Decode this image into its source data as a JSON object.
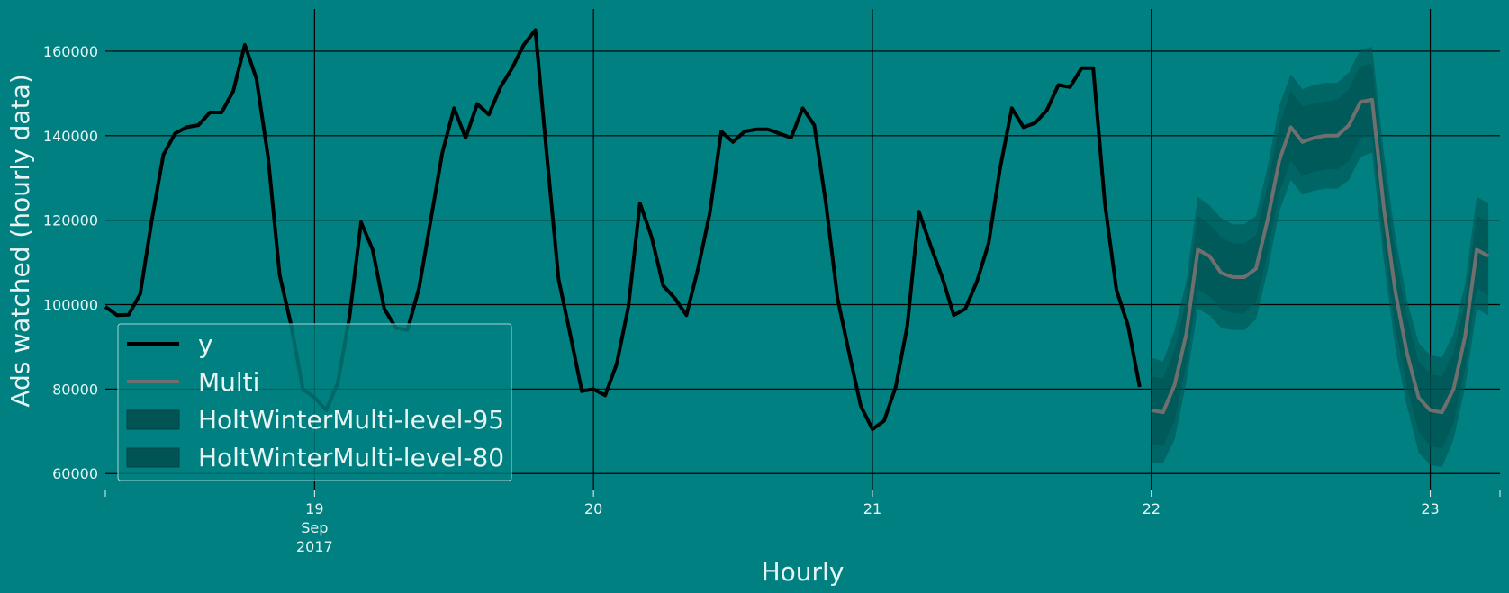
{
  "chart_data": {
    "type": "line",
    "title": "",
    "xlabel": "Hourly",
    "ylabel": "Ads watched (hourly data)",
    "background": "#008080",
    "grid": true,
    "grid_color": "#000000",
    "x_range": [
      "2017-09-18 06:00",
      "2017-09-23 06:00"
    ],
    "ylim": [
      56000,
      170000
    ],
    "y_ticks": [
      60000,
      80000,
      100000,
      120000,
      140000,
      160000
    ],
    "y_tick_labels": [
      "60000",
      "80000",
      "100000",
      "120000",
      "140000",
      "160000"
    ],
    "x_ticks": [
      {
        "x": "2017-09-19",
        "lines": [
          "19",
          "Sep",
          "2017"
        ]
      },
      {
        "x": "2017-09-20",
        "lines": [
          "20"
        ]
      },
      {
        "x": "2017-09-21",
        "lines": [
          "21"
        ]
      },
      {
        "x": "2017-09-22",
        "lines": [
          "22"
        ]
      },
      {
        "x": "2017-09-23",
        "lines": [
          "23"
        ]
      }
    ],
    "legend": {
      "placement": "lower-left",
      "entries": [
        {
          "label": "y",
          "kind": "line",
          "color": "#000000"
        },
        {
          "label": "Multi",
          "kind": "line",
          "color": "#6f6f6f"
        },
        {
          "label": "HoltWinterMulti-level-95",
          "kind": "patch",
          "color": "#005454"
        },
        {
          "label": "HoltWinterMulti-level-80",
          "kind": "patch",
          "color": "#005454"
        }
      ]
    },
    "series": [
      {
        "name": "y",
        "color": "#000000",
        "start": "2017-09-18 06:00",
        "step_hours": 1,
        "values": [
          99500,
          97500,
          97600,
          102500,
          120000,
          135500,
          140500,
          142000,
          142500,
          145500,
          145500,
          150500,
          161500,
          153500,
          135000,
          107000,
          95000,
          80000,
          78000,
          75000,
          81500,
          97000,
          119500,
          113000,
          99000,
          94500,
          94000,
          104000,
          120000,
          136000,
          146500,
          139500,
          147500,
          145000,
          151500,
          156000,
          161500,
          165000,
          135000,
          106000,
          93000,
          79500,
          80000,
          78500,
          86000,
          99500,
          124000,
          116000,
          104500,
          101500,
          97500,
          108500,
          121500,
          141000,
          138500,
          141000,
          141500,
          141500,
          140500,
          139500,
          146500,
          142500,
          124000,
          101500,
          88500,
          76000,
          70500,
          72500,
          80500,
          95000,
          122000,
          114000,
          106500,
          97500,
          99000,
          105500,
          114500,
          132500,
          146500,
          142000,
          143000,
          146000,
          152000,
          151500,
          156000,
          156000,
          124000,
          103500,
          95000,
          80500
        ]
      },
      {
        "name": "Multi",
        "color": "#6f6f6f",
        "start": "2017-09-22 00:00",
        "step_hours": 1,
        "values": [
          75000,
          74500,
          81000,
          93000,
          113000,
          111500,
          107500,
          106500,
          106500,
          108500,
          120000,
          134000,
          142000,
          138500,
          139500,
          140000,
          140000,
          142500,
          148000,
          148500,
          123000,
          103000,
          88500,
          78000,
          75000,
          74500,
          80000,
          92500,
          113000,
          111500
        ]
      }
    ],
    "bands": [
      {
        "name": "HoltWinterMulti-level-95",
        "color": "#005454",
        "start": "2017-09-22 00:00",
        "step_hours": 1,
        "lower": [
          62500,
          62500,
          68000,
          81500,
          99000,
          97500,
          94500,
          94000,
          94000,
          96500,
          108000,
          122000,
          129500,
          126000,
          127000,
          127500,
          127500,
          129500,
          135000,
          136000,
          110500,
          89500,
          76000,
          65000,
          62000,
          61500,
          68000,
          80500,
          99000,
          97500
        ],
        "upper": [
          87500,
          86500,
          94000,
          105500,
          125500,
          123500,
          120500,
          119000,
          119000,
          121000,
          132500,
          147000,
          154500,
          151000,
          152000,
          152500,
          152500,
          155000,
          160500,
          161000,
          136000,
          116000,
          101000,
          91000,
          88000,
          87500,
          93000,
          105000,
          125500,
          124000
        ]
      },
      {
        "name": "HoltWinterMulti-level-80",
        "color": "#005454",
        "start": "2017-09-22 00:00",
        "step_hours": 1,
        "lower": [
          67000,
          66500,
          72500,
          86000,
          103500,
          102000,
          99000,
          98000,
          98000,
          100500,
          112000,
          126500,
          134000,
          130500,
          131500,
          132000,
          132000,
          134000,
          139500,
          140000,
          115000,
          94500,
          80500,
          70000,
          66500,
          66000,
          72000,
          85000,
          104000,
          102000
        ],
        "upper": [
          83000,
          82500,
          89500,
          101000,
          121000,
          119000,
          116000,
          114500,
          114500,
          116500,
          128000,
          142500,
          150500,
          147000,
          147500,
          148000,
          148500,
          151000,
          156500,
          157000,
          131500,
          111500,
          97000,
          86500,
          83500,
          83000,
          88500,
          100500,
          121000,
          119500
        ]
      }
    ]
  }
}
